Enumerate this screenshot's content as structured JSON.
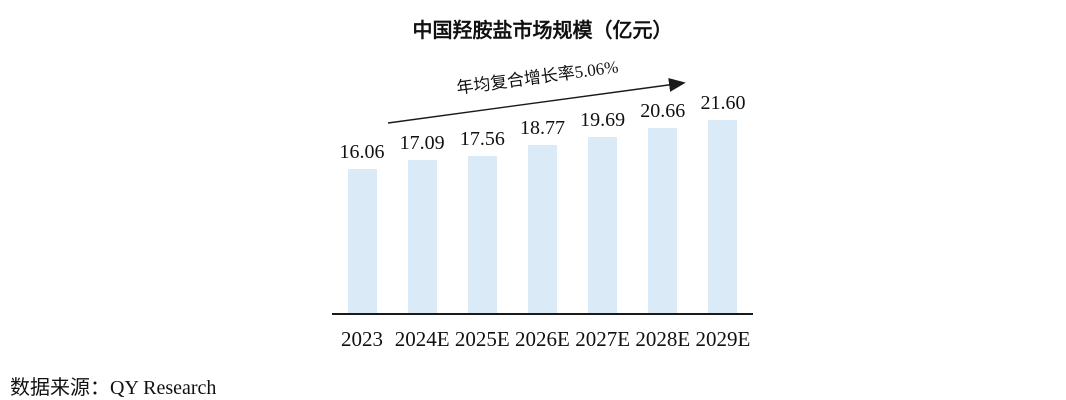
{
  "chart_data": {
    "type": "bar",
    "title": "中国羟胺盐市场规模（亿元）",
    "categories": [
      "2023",
      "2024E",
      "2025E",
      "2026E",
      "2027E",
      "2028E",
      "2029E"
    ],
    "values": [
      16.06,
      17.09,
      17.56,
      18.77,
      19.69,
      20.66,
      21.6
    ],
    "value_labels": [
      "16.06",
      "17.09",
      "17.56",
      "18.77",
      "19.69",
      "20.66",
      "21.60"
    ],
    "annotation": "年均复合增长率5.06%",
    "xlabel": "",
    "ylabel": "",
    "ylim": [
      0,
      25
    ],
    "grid": false,
    "legend": "none",
    "bar_color": "#daeaf6",
    "axis_color": "#1a1a1a",
    "text_color": "#111111"
  },
  "source": {
    "text": "数据来源：QY Research"
  }
}
